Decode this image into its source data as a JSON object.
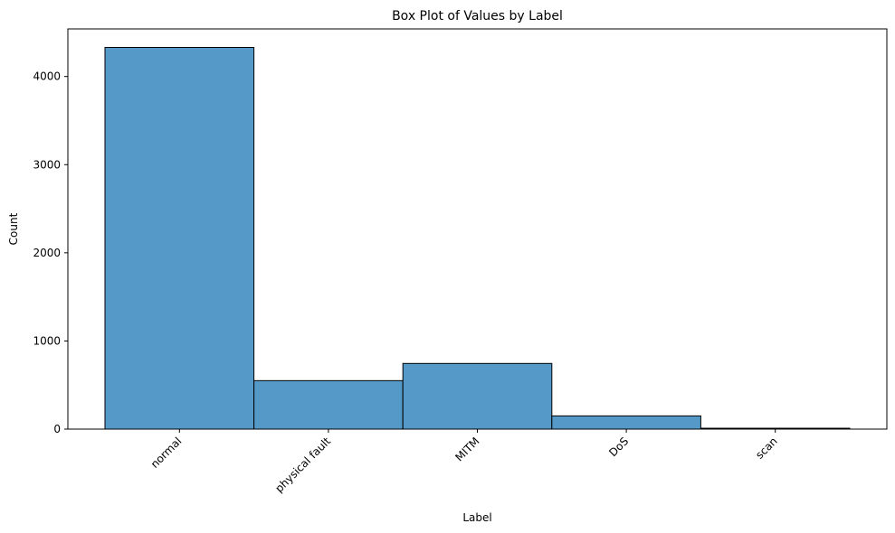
{
  "chart_data": {
    "type": "bar",
    "title": "Box Plot of Values by Label",
    "xlabel": "Label",
    "ylabel": "Count",
    "categories": [
      "normal",
      "physical fault",
      "MITM",
      "DoS",
      "scan"
    ],
    "values": [
      4330,
      550,
      745,
      150,
      10
    ],
    "ylim": [
      0,
      4540
    ],
    "yticks": [
      "0",
      "1000",
      "2000",
      "3000",
      "4000"
    ],
    "grid": false,
    "bar_color": "#5499c7",
    "edge_color": "#000000"
  }
}
